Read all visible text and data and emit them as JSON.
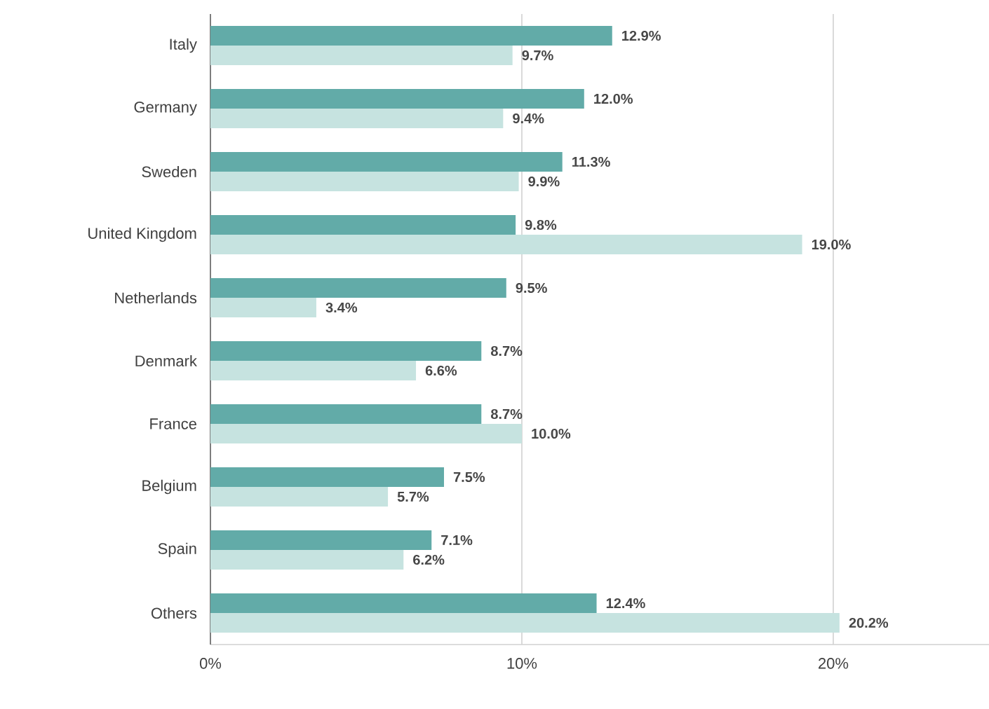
{
  "chart_data": {
    "type": "bar",
    "orientation": "horizontal",
    "categories": [
      "Italy",
      "Germany",
      "Sweden",
      "United Kingdom",
      "Netherlands",
      "Denmark",
      "France",
      "Belgium",
      "Spain",
      "Others"
    ],
    "series": [
      {
        "color": "#62aba8",
        "values": [
          12.9,
          12.0,
          11.3,
          9.8,
          9.5,
          8.7,
          8.7,
          7.5,
          7.1,
          12.4
        ],
        "value_labels": [
          "12.9%",
          "12.0%",
          "11.3%",
          "9.8%",
          "9.5%",
          "8.7%",
          "8.7%",
          "7.5%",
          "7.1%",
          "12.4%"
        ]
      },
      {
        "color": "#c6e3e0",
        "values": [
          9.7,
          9.4,
          9.9,
          19.0,
          3.4,
          6.6,
          10.0,
          5.7,
          6.2,
          20.2
        ],
        "value_labels": [
          "9.7%",
          "9.4%",
          "9.9%",
          "19.0%",
          "3.4%",
          "6.6%",
          "10.0%",
          "5.7%",
          "6.2%",
          "20.2%"
        ]
      }
    ],
    "xlim": [
      0,
      25
    ],
    "xticks": [
      {
        "value": 0,
        "label": "0%"
      },
      {
        "value": 10,
        "label": "10%"
      },
      {
        "value": 20,
        "label": "20%"
      }
    ],
    "grid": "x"
  }
}
